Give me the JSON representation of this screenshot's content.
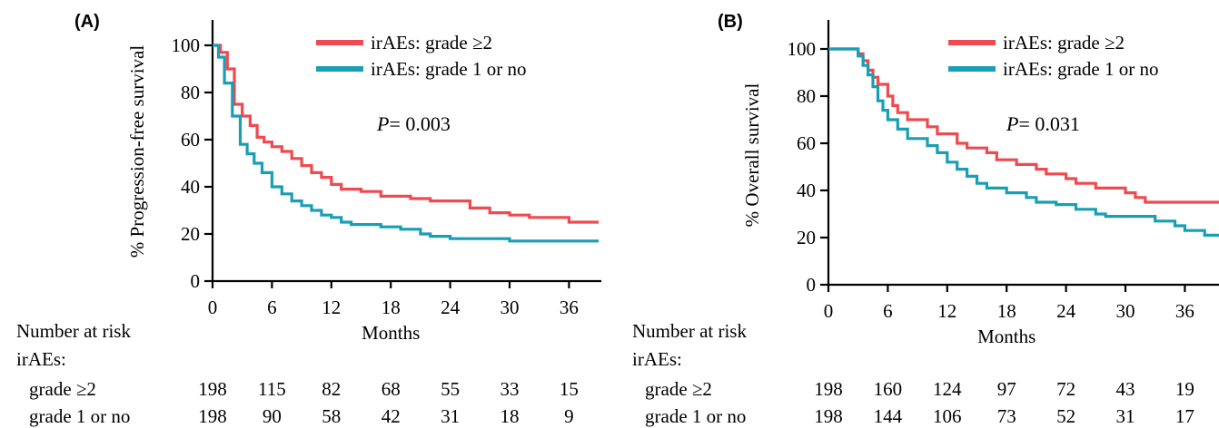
{
  "colors": {
    "grade2": "#ee4a50",
    "grade1": "#199fb3"
  },
  "chart_data": [
    {
      "type": "line",
      "panel_label": "(A)",
      "xlabel": "Months",
      "ylabel": "% Progression-free survival",
      "xticks": [
        "0",
        "6",
        "12",
        "18",
        "24",
        "30",
        "36"
      ],
      "yticks": [
        "0",
        "20",
        "40",
        "60",
        "80",
        "100"
      ],
      "xlim": [
        0,
        39
      ],
      "ylim": [
        0,
        110
      ],
      "legend_position": "top-right",
      "p_label": "P",
      "p_value": "= 0.003",
      "series": [
        {
          "name": "irAEs: grade ≥2",
          "color": "#ee4a50",
          "points": [
            [
              0,
              100
            ],
            [
              0.8,
              100
            ],
            [
              0.8,
              97
            ],
            [
              1.5,
              97
            ],
            [
              1.5,
              90
            ],
            [
              2.2,
              90
            ],
            [
              2.2,
              75
            ],
            [
              3,
              75
            ],
            [
              3,
              70
            ],
            [
              3.8,
              70
            ],
            [
              3.8,
              66
            ],
            [
              4.5,
              66
            ],
            [
              4.5,
              61
            ],
            [
              5.2,
              61
            ],
            [
              5.2,
              59
            ],
            [
              6,
              59
            ],
            [
              6,
              57
            ],
            [
              7,
              57
            ],
            [
              7,
              55
            ],
            [
              8,
              55
            ],
            [
              8,
              52
            ],
            [
              9,
              52
            ],
            [
              9,
              49
            ],
            [
              10,
              49
            ],
            [
              10,
              46
            ],
            [
              11,
              46
            ],
            [
              11,
              44
            ],
            [
              12,
              44
            ],
            [
              12,
              41
            ],
            [
              13,
              41
            ],
            [
              13,
              39
            ],
            [
              15,
              39
            ],
            [
              15,
              38
            ],
            [
              17,
              38
            ],
            [
              17,
              36
            ],
            [
              20,
              36
            ],
            [
              20,
              35
            ],
            [
              22,
              35
            ],
            [
              22,
              34
            ],
            [
              26,
              34
            ],
            [
              26,
              31
            ],
            [
              28,
              31
            ],
            [
              28,
              29
            ],
            [
              30,
              29
            ],
            [
              30,
              28
            ],
            [
              32,
              28
            ],
            [
              32,
              27
            ],
            [
              36,
              27
            ],
            [
              36,
              25
            ],
            [
              39,
              25
            ]
          ]
        },
        {
          "name": "irAEs: grade 1 or no",
          "color": "#199fb3",
          "points": [
            [
              0,
              100
            ],
            [
              0.6,
              100
            ],
            [
              0.6,
              95
            ],
            [
              1.2,
              95
            ],
            [
              1.2,
              84
            ],
            [
              2,
              84
            ],
            [
              2,
              70
            ],
            [
              2.8,
              70
            ],
            [
              2.8,
              58
            ],
            [
              3.5,
              58
            ],
            [
              3.5,
              54
            ],
            [
              4.2,
              54
            ],
            [
              4.2,
              50
            ],
            [
              5,
              50
            ],
            [
              5,
              46
            ],
            [
              6,
              46
            ],
            [
              6,
              40
            ],
            [
              7,
              40
            ],
            [
              7,
              37
            ],
            [
              8,
              37
            ],
            [
              8,
              34
            ],
            [
              9,
              34
            ],
            [
              9,
              32
            ],
            [
              10,
              32
            ],
            [
              10,
              30
            ],
            [
              11,
              30
            ],
            [
              11,
              28
            ],
            [
              12,
              28
            ],
            [
              12,
              27
            ],
            [
              13,
              27
            ],
            [
              13,
              25
            ],
            [
              14,
              25
            ],
            [
              14,
              24
            ],
            [
              17,
              24
            ],
            [
              17,
              23
            ],
            [
              19,
              23
            ],
            [
              19,
              22
            ],
            [
              21,
              22
            ],
            [
              21,
              20
            ],
            [
              22,
              20
            ],
            [
              22,
              19
            ],
            [
              24,
              19
            ],
            [
              24,
              18
            ],
            [
              30,
              18
            ],
            [
              30,
              17
            ],
            [
              39,
              17
            ]
          ]
        }
      ],
      "risk_table": {
        "header": "Number at risk",
        "group_label": "irAEs:",
        "rows": [
          {
            "label": "grade ≥2",
            "values": [
              "198",
              "115",
              "82",
              "68",
              "55",
              "33",
              "15"
            ]
          },
          {
            "label": "grade 1 or no",
            "values": [
              "198",
              "90",
              "58",
              "42",
              "31",
              "18",
              "9"
            ]
          }
        ]
      }
    },
    {
      "type": "line",
      "panel_label": "(B)",
      "xlabel": "Months",
      "ylabel": "% Overall survival",
      "xticks": [
        "0",
        "6",
        "12",
        "18",
        "24",
        "30",
        "36"
      ],
      "yticks": [
        "0",
        "20",
        "40",
        "60",
        "80",
        "100"
      ],
      "xlim": [
        0,
        40
      ],
      "ylim": [
        0,
        110
      ],
      "legend_position": "top-right",
      "p_label": "P",
      "p_value": "= 0.031",
      "series": [
        {
          "name": "irAEs: grade ≥2",
          "color": "#ee4a50",
          "points": [
            [
              0,
              100
            ],
            [
              3,
              100
            ],
            [
              3,
              98
            ],
            [
              3.5,
              98
            ],
            [
              3.5,
              95
            ],
            [
              4,
              95
            ],
            [
              4,
              91
            ],
            [
              4.5,
              91
            ],
            [
              4.5,
              88
            ],
            [
              5,
              88
            ],
            [
              5,
              85
            ],
            [
              6,
              85
            ],
            [
              6,
              80
            ],
            [
              6.5,
              80
            ],
            [
              6.5,
              76
            ],
            [
              7,
              76
            ],
            [
              7,
              73
            ],
            [
              8,
              73
            ],
            [
              8,
              70
            ],
            [
              10,
              70
            ],
            [
              10,
              67
            ],
            [
              11,
              67
            ],
            [
              11,
              64
            ],
            [
              13,
              64
            ],
            [
              13,
              60
            ],
            [
              14,
              60
            ],
            [
              14,
              58
            ],
            [
              16,
              58
            ],
            [
              16,
              56
            ],
            [
              17,
              56
            ],
            [
              17,
              53
            ],
            [
              19,
              53
            ],
            [
              19,
              51
            ],
            [
              21,
              51
            ],
            [
              21,
              49
            ],
            [
              22,
              49
            ],
            [
              22,
              47
            ],
            [
              24,
              47
            ],
            [
              24,
              45
            ],
            [
              25,
              45
            ],
            [
              25,
              43
            ],
            [
              27,
              43
            ],
            [
              27,
              41
            ],
            [
              30,
              41
            ],
            [
              30,
              39
            ],
            [
              31,
              39
            ],
            [
              31,
              37
            ],
            [
              32,
              37
            ],
            [
              32,
              35
            ],
            [
              40,
              35
            ]
          ]
        },
        {
          "name": "irAEs: grade 1 or no",
          "color": "#199fb3",
          "points": [
            [
              0,
              100
            ],
            [
              3,
              100
            ],
            [
              3,
              97
            ],
            [
              3.5,
              97
            ],
            [
              3.5,
              93
            ],
            [
              4,
              93
            ],
            [
              4,
              89
            ],
            [
              4.5,
              89
            ],
            [
              4.5,
              84
            ],
            [
              5,
              84
            ],
            [
              5,
              78
            ],
            [
              5.5,
              78
            ],
            [
              5.5,
              74
            ],
            [
              6,
              74
            ],
            [
              6,
              70
            ],
            [
              7,
              70
            ],
            [
              7,
              66
            ],
            [
              8,
              66
            ],
            [
              8,
              62
            ],
            [
              10,
              62
            ],
            [
              10,
              59
            ],
            [
              11,
              59
            ],
            [
              11,
              56
            ],
            [
              12,
              56
            ],
            [
              12,
              52
            ],
            [
              13,
              52
            ],
            [
              13,
              49
            ],
            [
              14,
              49
            ],
            [
              14,
              46
            ],
            [
              15,
              46
            ],
            [
              15,
              43
            ],
            [
              16,
              43
            ],
            [
              16,
              41
            ],
            [
              18,
              41
            ],
            [
              18,
              39
            ],
            [
              20,
              39
            ],
            [
              20,
              37
            ],
            [
              21,
              37
            ],
            [
              21,
              35
            ],
            [
              23,
              35
            ],
            [
              23,
              34
            ],
            [
              25,
              34
            ],
            [
              25,
              32
            ],
            [
              27,
              32
            ],
            [
              27,
              30
            ],
            [
              28,
              30
            ],
            [
              28,
              29
            ],
            [
              33,
              29
            ],
            [
              33,
              27
            ],
            [
              35,
              27
            ],
            [
              35,
              25
            ],
            [
              36,
              25
            ],
            [
              36,
              23
            ],
            [
              38,
              23
            ],
            [
              38,
              21
            ],
            [
              40,
              21
            ]
          ]
        }
      ],
      "risk_table": {
        "header": "Number at risk",
        "group_label": "irAEs:",
        "rows": [
          {
            "label": "grade ≥2",
            "values": [
              "198",
              "160",
              "124",
              "97",
              "72",
              "43",
              "19"
            ]
          },
          {
            "label": "grade 1 or no",
            "values": [
              "198",
              "144",
              "106",
              "73",
              "52",
              "31",
              "17"
            ]
          }
        ]
      }
    }
  ]
}
